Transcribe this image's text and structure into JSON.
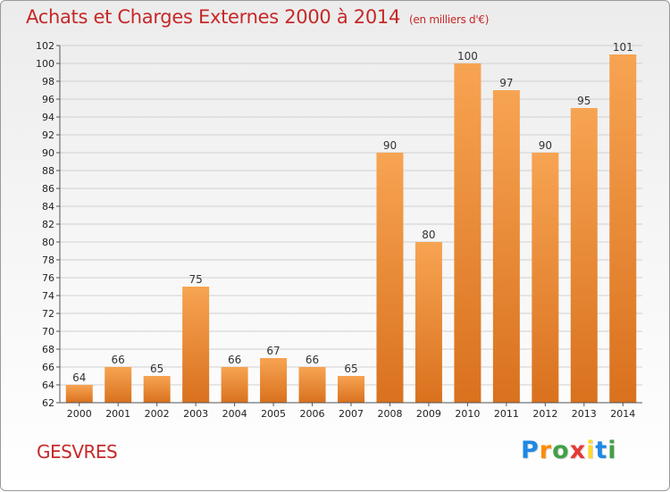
{
  "title": "Achats et Charges Externes 2000 à 2014",
  "unit": "(en milliers d'€)",
  "place": "GESVRES",
  "logo": {
    "letters": [
      "P",
      "r",
      "o",
      "x",
      "i",
      "t",
      "i"
    ],
    "colors": [
      "#1e88e5",
      "#fb8c00",
      "#43a047",
      "#e53935",
      "#fdd835",
      "#1e88e5",
      "#43a047"
    ]
  },
  "colors": {
    "bar_top": "#f7a452",
    "bar_bottom": "#d9711e",
    "title": "#c62828"
  },
  "chart_data": {
    "type": "bar",
    "title": "Achats et Charges Externes 2000 à 2014",
    "categories": [
      "2000",
      "2001",
      "2002",
      "2003",
      "2004",
      "2005",
      "2006",
      "2007",
      "2008",
      "2009",
      "2010",
      "2011",
      "2012",
      "2013",
      "2014"
    ],
    "values": [
      64,
      66,
      65,
      75,
      66,
      67,
      66,
      65,
      90,
      80,
      100,
      97,
      90,
      95,
      101
    ],
    "ylim": [
      62,
      102
    ],
    "yticks": [
      62,
      64,
      66,
      68,
      70,
      72,
      74,
      76,
      78,
      80,
      82,
      84,
      86,
      88,
      90,
      92,
      94,
      96,
      98,
      100,
      102
    ],
    "grid": true,
    "xlabel": "",
    "ylabel": ""
  }
}
